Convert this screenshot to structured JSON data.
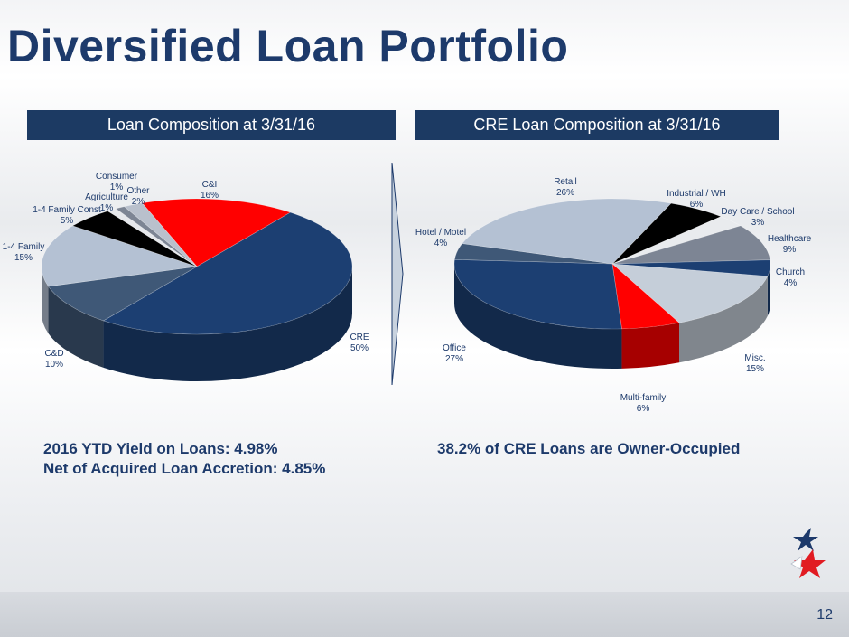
{
  "title": "Diversified Loan Portfolio",
  "headers": {
    "left": "Loan Composition at 3/31/16",
    "right": "CRE Loan Composition at 3/31/16"
  },
  "notes": {
    "left_line1": "2016 YTD Yield on Loans: 4.98%",
    "left_line2": "Net of Acquired Loan Accretion: 4.85%",
    "right": "38.2% of CRE Loans are Owner-Occupied"
  },
  "page_number": "12",
  "chart_data": [
    {
      "type": "pie",
      "title": "Loan Composition at 3/31/16",
      "series": [
        {
          "label": "C&I",
          "value": 16,
          "pct": "16%",
          "color": "#ff0000"
        },
        {
          "label": "CRE",
          "value": 50,
          "pct": "50%",
          "color": "#1c3f72"
        },
        {
          "label": "C&D",
          "value": 10,
          "pct": "10%",
          "color": "#3f5877"
        },
        {
          "label": "1-4 Family",
          "value": 15,
          "pct": "15%",
          "color": "#b4c1d3"
        },
        {
          "label": "1-4 Family Const",
          "value": 5,
          "pct": "5%",
          "color": "#000000"
        },
        {
          "label": "Agriculture",
          "value": 1,
          "pct": "1%",
          "color": "#e6e8ec"
        },
        {
          "label": "Consumer",
          "value": 1,
          "pct": "1%",
          "color": "#7d8594"
        },
        {
          "label": "Other",
          "value": 2,
          "pct": "2%",
          "color": "#b9c0cc"
        }
      ]
    },
    {
      "type": "pie",
      "title": "CRE Loan Composition at 3/31/16",
      "series": [
        {
          "label": "Industrial / WH",
          "value": 6,
          "pct": "6%",
          "color": "#000000"
        },
        {
          "label": "Day Care / School",
          "value": 3,
          "pct": "3%",
          "color": "#e9ebee"
        },
        {
          "label": "Healthcare",
          "value": 9,
          "pct": "9%",
          "color": "#7d8594"
        },
        {
          "label": "Church",
          "value": 4,
          "pct": "4%",
          "color": "#1c3f72"
        },
        {
          "label": "Misc.",
          "value": 15,
          "pct": "15%",
          "color": "#c5ced9"
        },
        {
          "label": "Multi-family",
          "value": 6,
          "pct": "6%",
          "color": "#ff0000"
        },
        {
          "label": "Office",
          "value": 27,
          "pct": "27%",
          "color": "#1c3f72"
        },
        {
          "label": "Hotel / Motel",
          "value": 4,
          "pct": "4%",
          "color": "#3f5877"
        },
        {
          "label": "Retail",
          "value": 26,
          "pct": "26%",
          "color": "#b4c1d3"
        }
      ]
    }
  ]
}
